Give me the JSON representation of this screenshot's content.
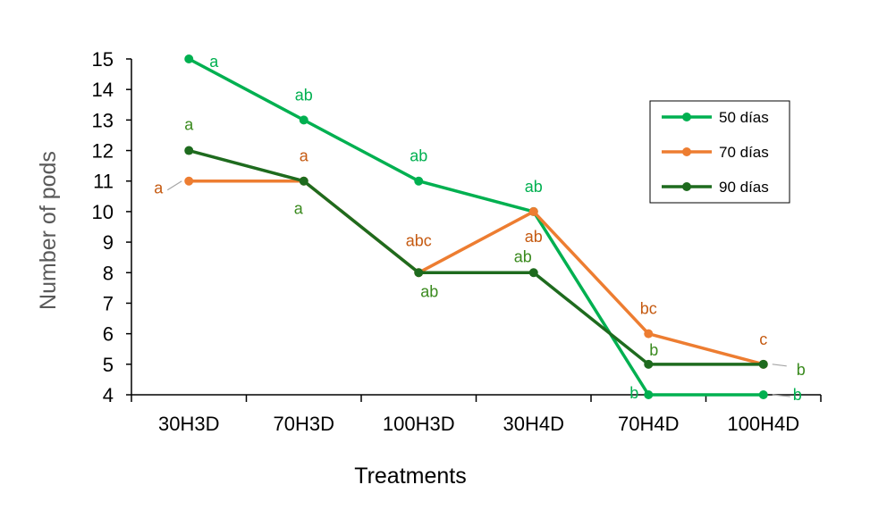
{
  "chart_data": {
    "type": "line",
    "xlabel": "Treatments",
    "ylabel": "Number of pods",
    "ylim": [
      4,
      15
    ],
    "yticks": [
      4,
      5,
      6,
      7,
      8,
      9,
      10,
      11,
      12,
      13,
      14,
      15
    ],
    "categories": [
      "30H3D",
      "70H3D",
      "100H3D",
      "30H4D",
      "70H4D",
      "100H4D"
    ],
    "grid": false,
    "legend_position": "top-right",
    "series": [
      {
        "name": "50 días",
        "color": "#00B050",
        "values": [
          15,
          13,
          11,
          10,
          4,
          4
        ],
        "labels": [
          "a",
          "ab",
          "ab",
          "ab",
          "b",
          "b"
        ]
      },
      {
        "name": "70 días",
        "color": "#ED7D31",
        "label_color": "#C55A11",
        "values": [
          11,
          11,
          8,
          10,
          6,
          5
        ],
        "labels": [
          "a",
          "a",
          "abc",
          "ab",
          "bc",
          "c"
        ]
      },
      {
        "name": "90 días",
        "color": "#1E6B1E",
        "label_color": "#3A8A1E",
        "values": [
          12,
          11,
          8,
          8,
          5,
          5
        ],
        "labels": [
          "a",
          "a",
          "ab",
          "ab",
          "b",
          "b"
        ]
      }
    ]
  }
}
